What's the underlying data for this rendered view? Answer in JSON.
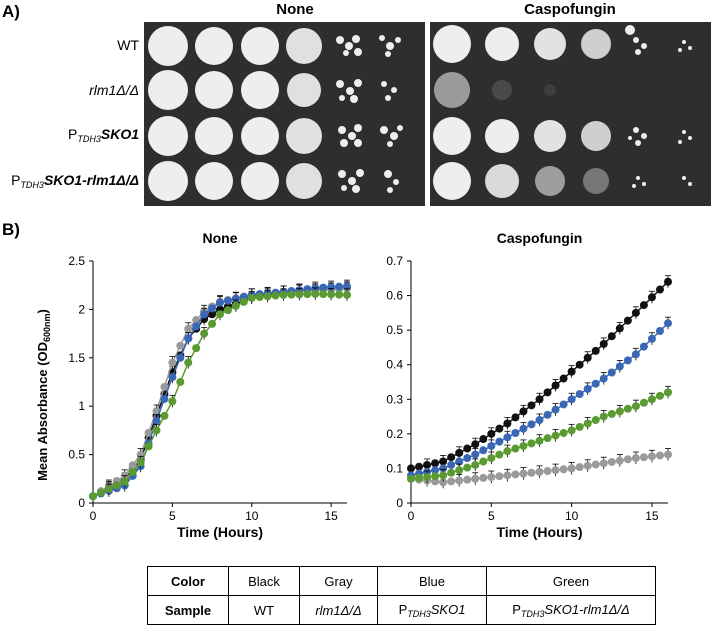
{
  "panel_a": {
    "label": "A)",
    "conditions": [
      "None",
      "Caspofungin"
    ],
    "strains": [
      {
        "main": "WT"
      },
      {
        "main": "rlm1Δ/Δ",
        "italic": true
      },
      {
        "prefix": "P",
        "sub": "TDH3",
        "main": "SKO1"
      },
      {
        "prefix": "P",
        "sub": "TDH3",
        "main": "SKO1-rlm1Δ/Δ"
      }
    ]
  },
  "panel_b": {
    "label": "B)",
    "ylabel_main": "Mean Absorbance (OD",
    "ylabel_sub": "600nm",
    "ylabel_end": ")"
  },
  "chart_data": [
    {
      "type": "line",
      "title": "None",
      "xlabel": "Time (Hours)",
      "ylabel": "Mean Absorbance (OD600nm)",
      "xlim": [
        0,
        16
      ],
      "ylim": [
        0,
        2.5
      ],
      "xticks": [
        0,
        5,
        10,
        15
      ],
      "yticks": [
        0,
        0.5,
        1,
        1.5,
        2,
        2.5
      ],
      "x": [
        0,
        2,
        3,
        4,
        5,
        6,
        7,
        8,
        10,
        12,
        14,
        16
      ],
      "series": [
        {
          "name": "Black",
          "color": "#111111",
          "values": [
            0.07,
            0.25,
            0.45,
            0.9,
            1.35,
            1.7,
            1.9,
            2.0,
            2.12,
            2.18,
            2.2,
            2.22
          ]
        },
        {
          "name": "Gray",
          "color": "#9a9a9a",
          "values": [
            0.07,
            0.28,
            0.5,
            0.95,
            1.45,
            1.8,
            1.98,
            2.08,
            2.15,
            2.18,
            2.2,
            2.22
          ]
        },
        {
          "name": "Blue",
          "color": "#3a67b4",
          "values": [
            0.07,
            0.18,
            0.38,
            0.85,
            1.3,
            1.7,
            1.95,
            2.07,
            2.15,
            2.18,
            2.22,
            2.24
          ]
        },
        {
          "name": "Green",
          "color": "#5b9a32",
          "values": [
            0.07,
            0.22,
            0.42,
            0.75,
            1.05,
            1.45,
            1.75,
            1.95,
            2.12,
            2.15,
            2.16,
            2.15
          ]
        }
      ]
    },
    {
      "type": "line",
      "title": "Caspofungin",
      "xlabel": "Time (Hours)",
      "ylabel": "",
      "xlim": [
        0,
        16
      ],
      "ylim": [
        0,
        0.7
      ],
      "xticks": [
        0,
        5,
        10,
        15
      ],
      "yticks": [
        0,
        0.1,
        0.2,
        0.3,
        0.4,
        0.5,
        0.6,
        0.7
      ],
      "x": [
        0,
        2,
        4,
        6,
        8,
        10,
        12,
        14,
        16
      ],
      "series": [
        {
          "name": "Black",
          "color": "#111111",
          "values": [
            0.1,
            0.12,
            0.17,
            0.23,
            0.3,
            0.38,
            0.46,
            0.55,
            0.64
          ]
        },
        {
          "name": "Gray",
          "color": "#9a9a9a",
          "values": [
            0.07,
            0.06,
            0.07,
            0.08,
            0.09,
            0.1,
            0.115,
            0.13,
            0.14
          ]
        },
        {
          "name": "Blue",
          "color": "#3a67b4",
          "values": [
            0.08,
            0.1,
            0.14,
            0.19,
            0.24,
            0.3,
            0.36,
            0.43,
            0.52
          ]
        },
        {
          "name": "Green",
          "color": "#5b9a32",
          "values": [
            0.07,
            0.08,
            0.11,
            0.15,
            0.18,
            0.21,
            0.25,
            0.28,
            0.32
          ]
        }
      ]
    }
  ],
  "legend_table": {
    "row1_header": "Color",
    "colors": [
      "Black",
      "Gray",
      "Blue",
      "Green"
    ],
    "row2_header": "Sample",
    "samples": [
      {
        "main": "WT"
      },
      {
        "main": "rlm1Δ/Δ",
        "italic": true
      },
      {
        "prefix": "P",
        "sub": "TDH3",
        "main": "SKO1"
      },
      {
        "prefix": "P",
        "sub": "TDH3",
        "main": "SKO1-rlm1Δ/Δ"
      }
    ]
  }
}
